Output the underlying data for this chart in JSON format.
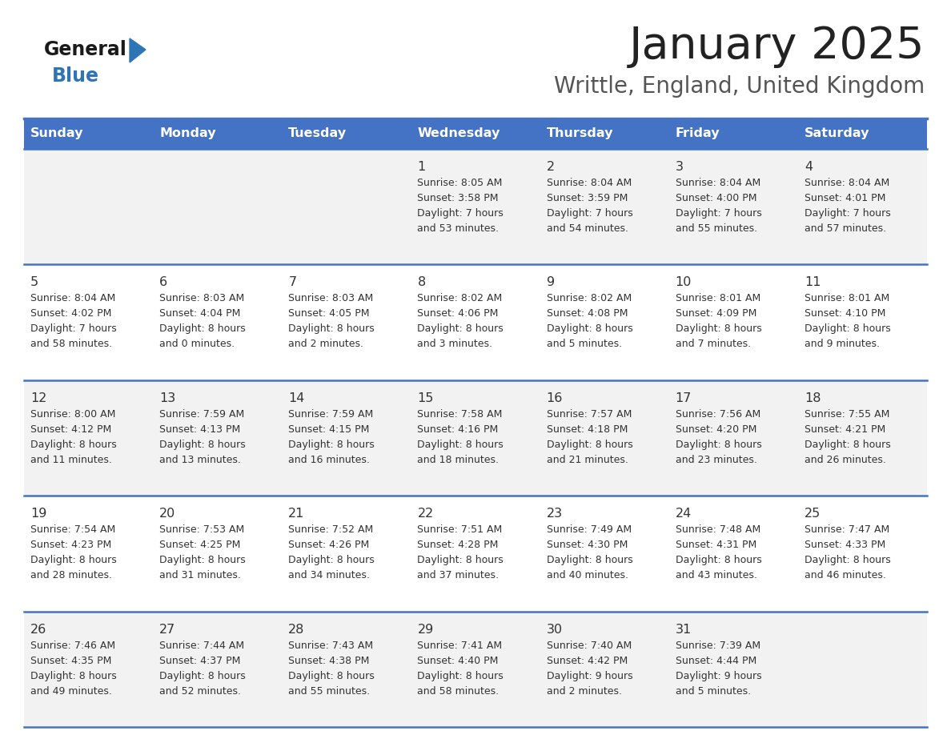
{
  "title": "January 2025",
  "subtitle": "Writtle, England, United Kingdom",
  "days_of_week": [
    "Sunday",
    "Monday",
    "Tuesday",
    "Wednesday",
    "Thursday",
    "Friday",
    "Saturday"
  ],
  "header_bg_color": "#4472C4",
  "header_text_color": "#FFFFFF",
  "row_bg_even": "#F2F2F2",
  "row_bg_odd": "#FFFFFF",
  "grid_line_color": "#4472C4",
  "title_color": "#222222",
  "subtitle_color": "#555555",
  "day_num_color": "#333333",
  "cell_text_color": "#333333",
  "logo_general_color": "#1a1a1a",
  "logo_blue_color": "#2E75B6",
  "logo_triangle_color": "#2E75B6",
  "calendar_data": [
    [
      {
        "day": null,
        "sunrise": null,
        "sunset": null,
        "daylight": null
      },
      {
        "day": null,
        "sunrise": null,
        "sunset": null,
        "daylight": null
      },
      {
        "day": null,
        "sunrise": null,
        "sunset": null,
        "daylight": null
      },
      {
        "day": 1,
        "sunrise": "8:05 AM",
        "sunset": "3:58 PM",
        "daylight": "7 hours\nand 53 minutes."
      },
      {
        "day": 2,
        "sunrise": "8:04 AM",
        "sunset": "3:59 PM",
        "daylight": "7 hours\nand 54 minutes."
      },
      {
        "day": 3,
        "sunrise": "8:04 AM",
        "sunset": "4:00 PM",
        "daylight": "7 hours\nand 55 minutes."
      },
      {
        "day": 4,
        "sunrise": "8:04 AM",
        "sunset": "4:01 PM",
        "daylight": "7 hours\nand 57 minutes."
      }
    ],
    [
      {
        "day": 5,
        "sunrise": "8:04 AM",
        "sunset": "4:02 PM",
        "daylight": "7 hours\nand 58 minutes."
      },
      {
        "day": 6,
        "sunrise": "8:03 AM",
        "sunset": "4:04 PM",
        "daylight": "8 hours\nand 0 minutes."
      },
      {
        "day": 7,
        "sunrise": "8:03 AM",
        "sunset": "4:05 PM",
        "daylight": "8 hours\nand 2 minutes."
      },
      {
        "day": 8,
        "sunrise": "8:02 AM",
        "sunset": "4:06 PM",
        "daylight": "8 hours\nand 3 minutes."
      },
      {
        "day": 9,
        "sunrise": "8:02 AM",
        "sunset": "4:08 PM",
        "daylight": "8 hours\nand 5 minutes."
      },
      {
        "day": 10,
        "sunrise": "8:01 AM",
        "sunset": "4:09 PM",
        "daylight": "8 hours\nand 7 minutes."
      },
      {
        "day": 11,
        "sunrise": "8:01 AM",
        "sunset": "4:10 PM",
        "daylight": "8 hours\nand 9 minutes."
      }
    ],
    [
      {
        "day": 12,
        "sunrise": "8:00 AM",
        "sunset": "4:12 PM",
        "daylight": "8 hours\nand 11 minutes."
      },
      {
        "day": 13,
        "sunrise": "7:59 AM",
        "sunset": "4:13 PM",
        "daylight": "8 hours\nand 13 minutes."
      },
      {
        "day": 14,
        "sunrise": "7:59 AM",
        "sunset": "4:15 PM",
        "daylight": "8 hours\nand 16 minutes."
      },
      {
        "day": 15,
        "sunrise": "7:58 AM",
        "sunset": "4:16 PM",
        "daylight": "8 hours\nand 18 minutes."
      },
      {
        "day": 16,
        "sunrise": "7:57 AM",
        "sunset": "4:18 PM",
        "daylight": "8 hours\nand 21 minutes."
      },
      {
        "day": 17,
        "sunrise": "7:56 AM",
        "sunset": "4:20 PM",
        "daylight": "8 hours\nand 23 minutes."
      },
      {
        "day": 18,
        "sunrise": "7:55 AM",
        "sunset": "4:21 PM",
        "daylight": "8 hours\nand 26 minutes."
      }
    ],
    [
      {
        "day": 19,
        "sunrise": "7:54 AM",
        "sunset": "4:23 PM",
        "daylight": "8 hours\nand 28 minutes."
      },
      {
        "day": 20,
        "sunrise": "7:53 AM",
        "sunset": "4:25 PM",
        "daylight": "8 hours\nand 31 minutes."
      },
      {
        "day": 21,
        "sunrise": "7:52 AM",
        "sunset": "4:26 PM",
        "daylight": "8 hours\nand 34 minutes."
      },
      {
        "day": 22,
        "sunrise": "7:51 AM",
        "sunset": "4:28 PM",
        "daylight": "8 hours\nand 37 minutes."
      },
      {
        "day": 23,
        "sunrise": "7:49 AM",
        "sunset": "4:30 PM",
        "daylight": "8 hours\nand 40 minutes."
      },
      {
        "day": 24,
        "sunrise": "7:48 AM",
        "sunset": "4:31 PM",
        "daylight": "8 hours\nand 43 minutes."
      },
      {
        "day": 25,
        "sunrise": "7:47 AM",
        "sunset": "4:33 PM",
        "daylight": "8 hours\nand 46 minutes."
      }
    ],
    [
      {
        "day": 26,
        "sunrise": "7:46 AM",
        "sunset": "4:35 PM",
        "daylight": "8 hours\nand 49 minutes."
      },
      {
        "day": 27,
        "sunrise": "7:44 AM",
        "sunset": "4:37 PM",
        "daylight": "8 hours\nand 52 minutes."
      },
      {
        "day": 28,
        "sunrise": "7:43 AM",
        "sunset": "4:38 PM",
        "daylight": "8 hours\nand 55 minutes."
      },
      {
        "day": 29,
        "sunrise": "7:41 AM",
        "sunset": "4:40 PM",
        "daylight": "8 hours\nand 58 minutes."
      },
      {
        "day": 30,
        "sunrise": "7:40 AM",
        "sunset": "4:42 PM",
        "daylight": "9 hours\nand 2 minutes."
      },
      {
        "day": 31,
        "sunrise": "7:39 AM",
        "sunset": "4:44 PM",
        "daylight": "9 hours\nand 5 minutes."
      },
      {
        "day": null,
        "sunrise": null,
        "sunset": null,
        "daylight": null
      }
    ]
  ]
}
